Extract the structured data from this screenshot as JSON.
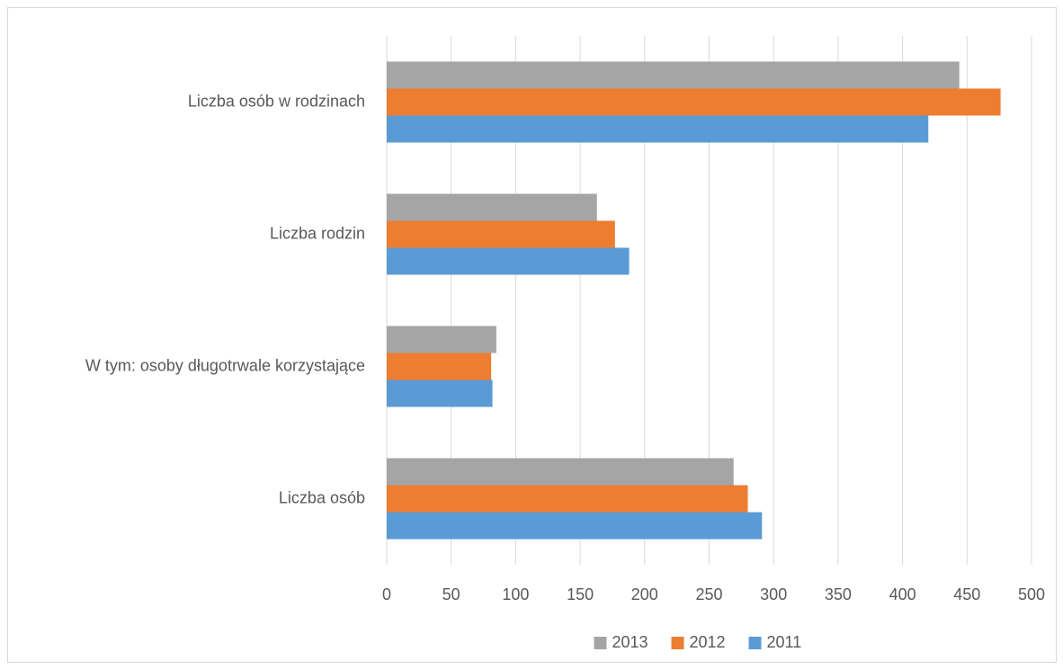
{
  "chart_data": {
    "type": "bar",
    "orientation": "horizontal",
    "categories": [
      "Liczba osób w rodzinach",
      "Liczba rodzin",
      "W tym: osoby długotrwale korzystające",
      "Liczba osób"
    ],
    "series": [
      {
        "name": "2013",
        "color": "#a5a5a5",
        "values": [
          444,
          163,
          85,
          269
        ]
      },
      {
        "name": "2012",
        "color": "#ed7d31",
        "values": [
          476,
          177,
          81,
          280
        ]
      },
      {
        "name": "2011",
        "color": "#5b9bd5",
        "values": [
          420,
          188,
          82,
          291
        ]
      }
    ],
    "xlim": [
      0,
      500
    ],
    "xticks": [
      0,
      50,
      100,
      150,
      200,
      250,
      300,
      350,
      400,
      450,
      500
    ],
    "grid": true,
    "legend": "bottom"
  }
}
